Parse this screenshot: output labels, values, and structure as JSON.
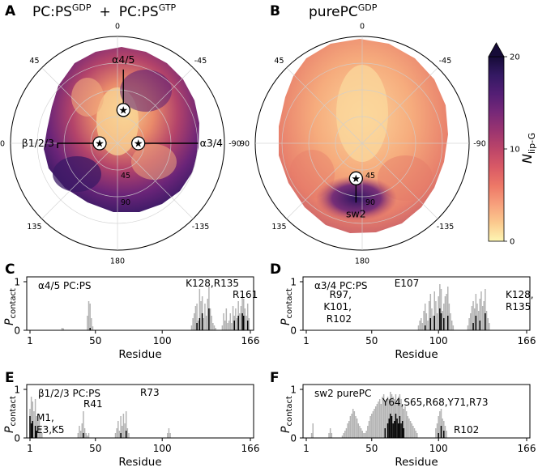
{
  "figure": {
    "panel_labels": [
      "A",
      "B",
      "C",
      "D",
      "E",
      "F"
    ],
    "polar": {
      "A": {
        "title_main": "PC:PS",
        "title_sup1": "GDP",
        "title_plus": "+",
        "title_main2": "PC:PS",
        "title_sup2": "GTP",
        "angle_labels": [
          "0",
          "-45",
          "-90",
          "-135",
          "180",
          "135",
          "90",
          "45"
        ],
        "radial_labels": [
          "45",
          "90"
        ],
        "features": [
          {
            "name": "α4/5",
            "azimuth_deg": -10,
            "tilt_deg": 57
          },
          {
            "name": "α3/4",
            "azimuth_deg": -90,
            "tilt_deg": 35
          },
          {
            "name": "β1/2/3",
            "azimuth_deg": 90,
            "tilt_deg": 30
          }
        ]
      },
      "B": {
        "title_main": "purePC",
        "title_sup1": "GDP",
        "angle_labels": [
          "0",
          "-45",
          "-90",
          "-135",
          "180",
          "135",
          "90",
          "45"
        ],
        "radial_labels": [
          "45",
          "90"
        ],
        "features": [
          {
            "name": "sw2",
            "azimuth_deg": 170,
            "tilt_deg": 60
          }
        ]
      }
    },
    "colorbar": {
      "label": "N",
      "label_sub": "lip-G",
      "min": 0,
      "max": 20,
      "ticks": [
        "0",
        "10",
        "20"
      ],
      "extend": "max",
      "colors": [
        "#fdf6b3",
        "#fbc98e",
        "#f7a07c",
        "#ed7867",
        "#d95a66",
        "#bc4569",
        "#9a3470",
        "#762878",
        "#531e74",
        "#341963",
        "#160b38"
      ]
    }
  },
  "chart_data": [
    {
      "type": "bar",
      "panel": "C",
      "title": "α4/5 PC:PS",
      "ylabel": "P",
      "ylabel_sub": "contact",
      "xlabel": "Residue",
      "xlim": [
        1,
        166
      ],
      "ylim": [
        0,
        1
      ],
      "xticks": [
        "1",
        "50",
        "100",
        "166"
      ],
      "yticks": [
        "0",
        "1"
      ],
      "annotations": [
        "K128,R135",
        "R161"
      ],
      "series": [
        {
          "name": "all",
          "color": "#b4b4b4",
          "x": [
            25,
            26,
            44,
            45,
            46,
            47,
            48,
            122,
            123,
            124,
            125,
            126,
            127,
            128,
            129,
            130,
            131,
            132,
            133,
            134,
            135,
            136,
            137,
            138,
            139,
            140,
            145,
            146,
            147,
            148,
            149,
            150,
            151,
            152,
            153,
            154,
            155,
            156,
            157,
            158,
            159,
            160,
            161,
            162,
            163,
            164,
            165
          ],
          "values": [
            0.05,
            0.04,
            0.3,
            0.6,
            0.55,
            0.25,
            0.08,
            0.1,
            0.25,
            0.35,
            0.5,
            0.55,
            0.2,
            0.85,
            0.6,
            0.7,
            0.25,
            0.55,
            0.3,
            0.65,
            0.9,
            0.45,
            0.3,
            0.15,
            0.1,
            0.05,
            0.1,
            0.35,
            0.2,
            0.45,
            0.15,
            0.2,
            0.35,
            0.15,
            0.5,
            0.3,
            0.45,
            0.25,
            0.6,
            0.35,
            0.5,
            0.75,
            0.65,
            0.45,
            0.3,
            0.55,
            0.25
          ]
        },
        {
          "name": "key",
          "color": "#000000",
          "x": [
            46,
            126,
            128,
            130,
            135,
            154,
            157,
            160,
            161,
            164
          ],
          "values": [
            0.05,
            0.15,
            0.25,
            0.35,
            0.45,
            0.2,
            0.3,
            0.35,
            0.3,
            0.2
          ]
        }
      ]
    },
    {
      "type": "bar",
      "panel": "D",
      "title": "α3/4 PC:PS",
      "ylabel": "P",
      "ylabel_sub": "contact",
      "xlabel": "Residue",
      "xlim": [
        1,
        166
      ],
      "ylim": [
        0,
        1
      ],
      "xticks": [
        "1",
        "50",
        "100",
        "166"
      ],
      "yticks": [
        "0",
        "1"
      ],
      "annotations": [
        "E107",
        "R97,",
        "K101,",
        "R102",
        "K128,",
        "R135"
      ],
      "series": [
        {
          "name": "all",
          "color": "#b4b4b4",
          "x": [
            85,
            86,
            87,
            88,
            89,
            90,
            91,
            92,
            93,
            94,
            95,
            96,
            97,
            98,
            99,
            100,
            101,
            102,
            103,
            104,
            105,
            106,
            107,
            108,
            109,
            110,
            111,
            122,
            123,
            124,
            125,
            126,
            127,
            128,
            129,
            130,
            131,
            132,
            133,
            134,
            135,
            136,
            137,
            138
          ],
          "values": [
            0.1,
            0.2,
            0.25,
            0.15,
            0.4,
            0.55,
            0.35,
            0.2,
            0.6,
            0.75,
            0.45,
            0.3,
            0.8,
            0.6,
            0.35,
            0.7,
            0.95,
            0.85,
            0.4,
            0.55,
            0.7,
            0.75,
            0.9,
            0.55,
            0.35,
            0.2,
            0.1,
            0.1,
            0.25,
            0.35,
            0.5,
            0.6,
            0.45,
            0.75,
            0.55,
            0.4,
            0.65,
            0.8,
            0.5,
            0.6,
            0.85,
            0.4,
            0.25,
            0.15
          ]
        },
        {
          "name": "key",
          "color": "#000000",
          "x": [
            90,
            94,
            97,
            101,
            102,
            104,
            107,
            126,
            128,
            131,
            135
          ],
          "values": [
            0.1,
            0.25,
            0.3,
            0.45,
            0.35,
            0.25,
            0.3,
            0.15,
            0.3,
            0.2,
            0.35
          ]
        }
      ]
    },
    {
      "type": "bar",
      "panel": "E",
      "title": "β1/2/3 PC:PS",
      "ylabel": "P",
      "ylabel_sub": "contact",
      "xlabel": "Residue",
      "xlim": [
        1,
        166
      ],
      "ylim": [
        0,
        1
      ],
      "xticks": [
        "1",
        "50",
        "100",
        "166"
      ],
      "yticks": [
        "0",
        "1"
      ],
      "annotations": [
        "M1,",
        "E3,K5",
        "R41",
        "R73"
      ],
      "series": [
        {
          "name": "all",
          "color": "#b4b4b4",
          "x": [
            1,
            2,
            3,
            4,
            5,
            6,
            7,
            8,
            9,
            10,
            37,
            38,
            39,
            40,
            41,
            42,
            43,
            44,
            45,
            65,
            66,
            67,
            68,
            69,
            70,
            71,
            72,
            73,
            74,
            75,
            104,
            105,
            106
          ],
          "values": [
            0.6,
            0.85,
            0.75,
            0.55,
            0.8,
            0.45,
            0.35,
            0.5,
            0.2,
            0.1,
            0.1,
            0.25,
            0.15,
            0.3,
            0.55,
            0.2,
            0.1,
            0.05,
            0.1,
            0.1,
            0.2,
            0.35,
            0.15,
            0.45,
            0.25,
            0.5,
            0.3,
            0.55,
            0.2,
            0.1,
            0.1,
            0.2,
            0.1
          ]
        },
        {
          "name": "key",
          "color": "#000000",
          "x": [
            1,
            2,
            3,
            5,
            6,
            41,
            69,
            73
          ],
          "values": [
            0.45,
            0.3,
            0.35,
            0.25,
            0.15,
            0.1,
            0.1,
            0.15
          ]
        }
      ]
    },
    {
      "type": "bar",
      "panel": "F",
      "title": "sw2 purePC",
      "ylabel": "P",
      "ylabel_sub": "contact",
      "xlabel": "Residue",
      "xlim": [
        1,
        166
      ],
      "ylim": [
        0,
        1
      ],
      "xticks": [
        "1",
        "50",
        "100",
        "166"
      ],
      "yticks": [
        "0",
        "1"
      ],
      "annotations": [
        "Y64,S65,R68,Y71,R73",
        "R102"
      ],
      "series": [
        {
          "name": "all",
          "color": "#b4b4b4",
          "x": [
            5,
            6,
            18,
            19,
            20,
            28,
            29,
            30,
            31,
            32,
            33,
            34,
            35,
            36,
            37,
            38,
            39,
            40,
            41,
            42,
            43,
            44,
            45,
            46,
            47,
            48,
            49,
            50,
            51,
            52,
            53,
            54,
            55,
            56,
            57,
            58,
            59,
            60,
            61,
            62,
            63,
            64,
            65,
            66,
            67,
            68,
            69,
            70,
            71,
            72,
            73,
            74,
            75,
            76,
            77,
            78,
            79,
            80,
            81,
            82,
            83,
            84,
            98,
            99,
            100,
            101,
            102,
            103,
            104,
            105,
            106
          ],
          "values": [
            0.1,
            0.3,
            0.1,
            0.2,
            0.1,
            0.05,
            0.1,
            0.15,
            0.2,
            0.3,
            0.35,
            0.45,
            0.5,
            0.6,
            0.55,
            0.45,
            0.4,
            0.3,
            0.25,
            0.2,
            0.15,
            0.1,
            0.1,
            0.15,
            0.25,
            0.35,
            0.45,
            0.5,
            0.55,
            0.6,
            0.65,
            0.7,
            0.75,
            0.8,
            0.7,
            0.85,
            0.9,
            0.75,
            0.8,
            0.85,
            0.8,
            0.95,
            0.9,
            0.85,
            0.8,
            0.9,
            0.75,
            0.85,
            0.9,
            0.8,
            0.7,
            0.6,
            0.65,
            0.55,
            0.45,
            0.4,
            0.35,
            0.3,
            0.25,
            0.2,
            0.15,
            0.1,
            0.2,
            0.3,
            0.45,
            0.55,
            0.6,
            0.4,
            0.35,
            0.25,
            0.15
          ]
        },
        {
          "name": "key",
          "color": "#000000",
          "x": [
            60,
            62,
            63,
            64,
            65,
            66,
            67,
            68,
            69,
            70,
            71,
            72,
            73,
            74,
            100,
            102,
            104
          ],
          "values": [
            0.2,
            0.3,
            0.4,
            0.5,
            0.45,
            0.3,
            0.35,
            0.5,
            0.4,
            0.3,
            0.45,
            0.3,
            0.35,
            0.2,
            0.1,
            0.25,
            0.15
          ]
        }
      ]
    }
  ]
}
